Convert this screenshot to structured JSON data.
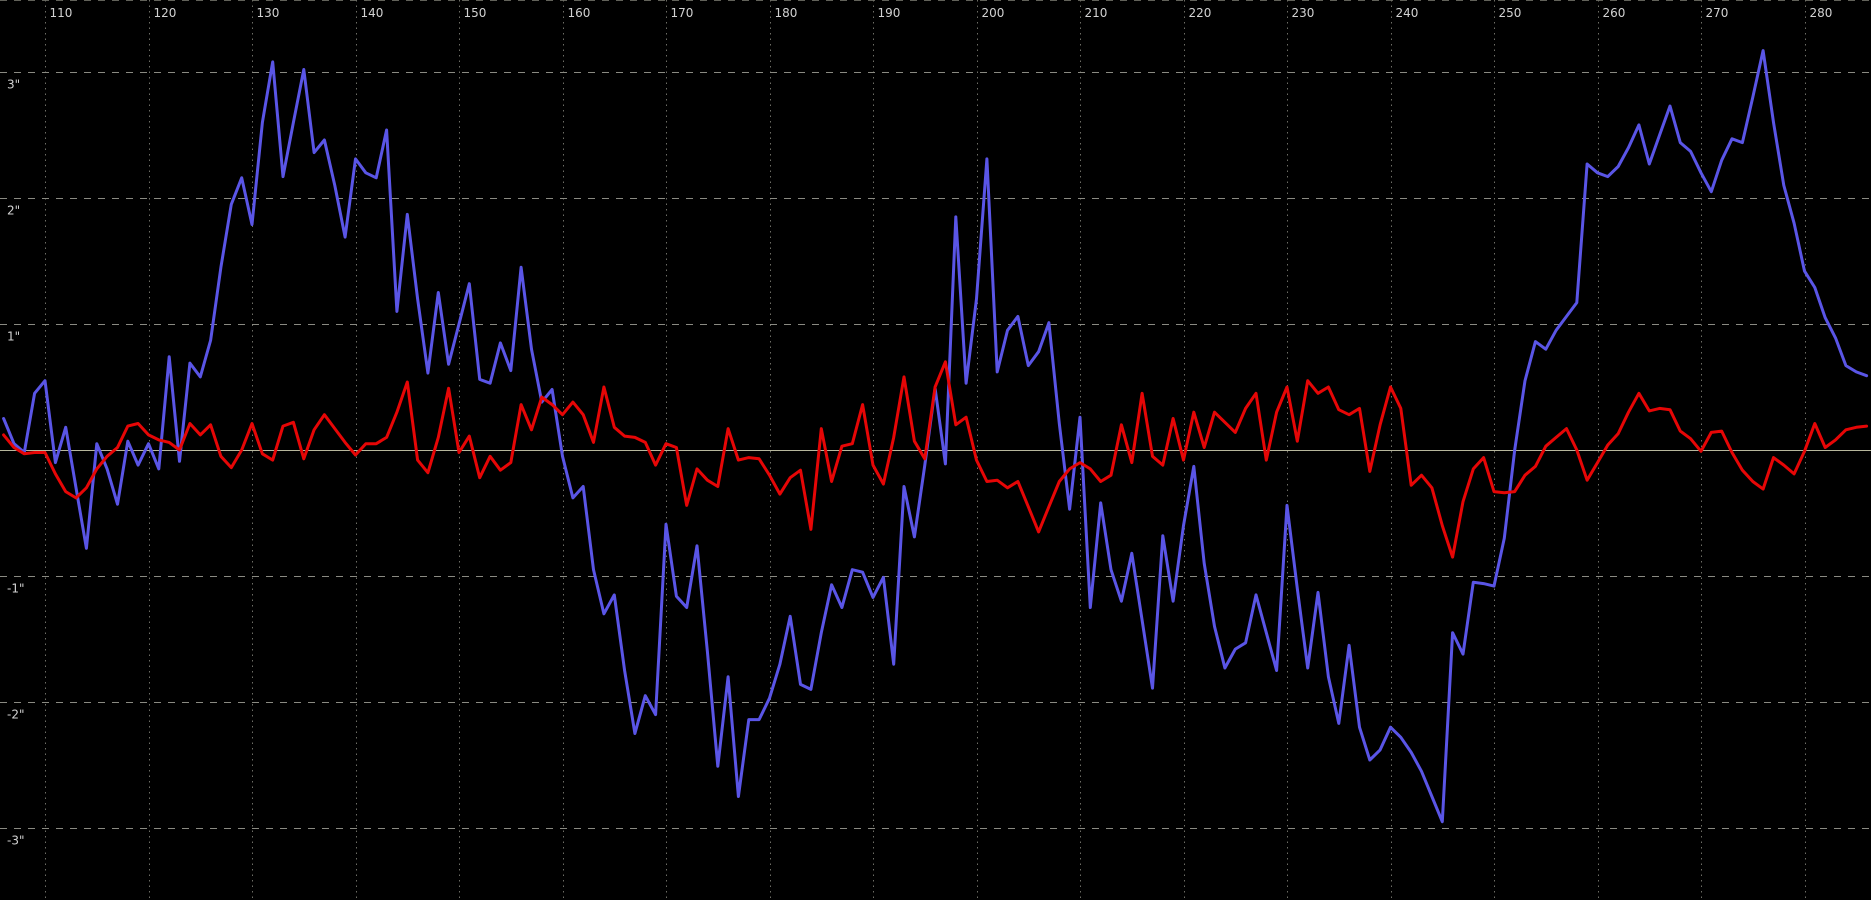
{
  "chart_data": {
    "type": "line",
    "title": "",
    "xlabel": "",
    "ylabel": "",
    "background_color": "#000000",
    "h_grid_color": "#8a8a82",
    "v_grid_color": "#6e6e66",
    "zero_line_color": "#b6b69c",
    "top_border_color": "#62625a",
    "label_color": "#d2d2d2",
    "x_axis": {
      "min": 105.7,
      "max": 286.4,
      "tick_step": 10,
      "ticks": [
        110,
        120,
        130,
        140,
        150,
        160,
        170,
        180,
        190,
        200,
        210,
        220,
        230,
        240,
        250,
        260,
        270,
        280
      ],
      "gridline_style": "dotted",
      "label_position": "top"
    },
    "y_axis": {
      "min": -3.57,
      "max": 3.57,
      "ticks": [
        {
          "value": 3,
          "label": "3\""
        },
        {
          "value": 2,
          "label": "2\""
        },
        {
          "value": 1,
          "label": "1\""
        },
        {
          "value": -1,
          "label": "-1\""
        },
        {
          "value": -2,
          "label": "-2\""
        },
        {
          "value": -3,
          "label": "-3\""
        }
      ],
      "gridline_style": "dashed",
      "zero_line": true,
      "unit": "arcsec"
    },
    "series": [
      {
        "name": "blue",
        "color": "#5a55e6",
        "stroke_width": 3,
        "x_start": 106,
        "x_step": 1,
        "values": [
          0.25,
          0.05,
          -0.02,
          0.45,
          0.55,
          -0.1,
          0.18,
          -0.3,
          -0.78,
          0.05,
          -0.15,
          -0.43,
          0.07,
          -0.12,
          0.05,
          -0.15,
          0.74,
          -0.09,
          0.69,
          0.58,
          0.87,
          1.45,
          1.95,
          2.16,
          1.79,
          2.6,
          3.08,
          2.17,
          2.6,
          3.02,
          2.36,
          2.46,
          2.1,
          1.69,
          2.31,
          2.2,
          2.16,
          2.54,
          1.1,
          1.87,
          1.2,
          0.61,
          1.25,
          0.68,
          1.0,
          1.32,
          0.56,
          0.53,
          0.85,
          0.63,
          1.45,
          0.8,
          0.38,
          0.48,
          -0.05,
          -0.38,
          -0.29,
          -0.95,
          -1.3,
          -1.15,
          -1.75,
          -2.25,
          -1.95,
          -2.1,
          -0.59,
          -1.16,
          -1.25,
          -0.76,
          -1.6,
          -2.51,
          -1.8,
          -2.75,
          -2.14,
          -2.14,
          -1.97,
          -1.7,
          -1.32,
          -1.86,
          -1.9,
          -1.45,
          -1.07,
          -1.25,
          -0.95,
          -0.97,
          -1.17,
          -1.01,
          -1.7,
          -0.29,
          -0.69,
          -0.12,
          0.49,
          -0.11,
          1.85,
          0.53,
          1.2,
          2.31,
          0.62,
          0.95,
          1.06,
          0.67,
          0.78,
          1.01,
          0.21,
          -0.47,
          0.26,
          -1.25,
          -0.42,
          -0.95,
          -1.2,
          -0.82,
          -1.35,
          -1.89,
          -0.68,
          -1.2,
          -0.6,
          -0.13,
          -0.9,
          -1.4,
          -1.73,
          -1.58,
          -1.53,
          -1.15,
          -1.45,
          -1.75,
          -0.44,
          -1.1,
          -1.73,
          -1.13,
          -1.8,
          -2.17,
          -1.55,
          -2.2,
          -2.46,
          -2.38,
          -2.2,
          -2.28,
          -2.4,
          -2.55,
          -2.75,
          -2.95,
          -1.45,
          -1.62,
          -1.05,
          -1.06,
          -1.08,
          -0.7,
          0.0,
          0.55,
          0.86,
          0.8,
          0.95,
          1.06,
          1.17,
          2.27,
          2.2,
          2.17,
          2.25,
          2.4,
          2.58,
          2.27,
          2.5,
          2.73,
          2.44,
          2.37,
          2.2,
          2.05,
          2.3,
          2.47,
          2.44,
          2.8,
          3.17,
          2.6,
          2.1,
          1.8,
          1.42,
          1.29,
          1.05,
          0.89,
          0.67,
          0.62,
          0.59
        ]
      },
      {
        "name": "red",
        "color": "#e60606",
        "stroke_width": 3,
        "x_start": 106,
        "x_step": 1,
        "values": [
          0.12,
          0.02,
          -0.03,
          -0.02,
          -0.02,
          -0.19,
          -0.33,
          -0.38,
          -0.3,
          -0.15,
          -0.05,
          0.02,
          0.19,
          0.21,
          0.12,
          0.08,
          0.06,
          0.0,
          0.21,
          0.12,
          0.2,
          -0.05,
          -0.14,
          0.0,
          0.21,
          -0.03,
          -0.08,
          0.19,
          0.22,
          -0.07,
          0.16,
          0.28,
          0.17,
          0.06,
          -0.04,
          0.05,
          0.05,
          0.1,
          0.3,
          0.54,
          -0.08,
          -0.18,
          0.1,
          0.49,
          -0.02,
          0.11,
          -0.22,
          -0.05,
          -0.16,
          -0.1,
          0.36,
          0.16,
          0.42,
          0.36,
          0.28,
          0.38,
          0.28,
          0.06,
          0.5,
          0.18,
          0.11,
          0.1,
          0.06,
          -0.12,
          0.05,
          0.02,
          -0.44,
          -0.15,
          -0.24,
          -0.29,
          0.17,
          -0.08,
          -0.06,
          -0.07,
          -0.2,
          -0.35,
          -0.22,
          -0.16,
          -0.63,
          0.17,
          -0.25,
          0.03,
          0.05,
          0.36,
          -0.12,
          -0.27,
          0.1,
          0.58,
          0.07,
          -0.07,
          0.5,
          0.7,
          0.2,
          0.26,
          -0.08,
          -0.25,
          -0.24,
          -0.3,
          -0.25,
          -0.45,
          -0.65,
          -0.45,
          -0.25,
          -0.15,
          -0.1,
          -0.15,
          -0.25,
          -0.2,
          0.2,
          -0.1,
          0.45,
          -0.05,
          -0.12,
          0.25,
          -0.08,
          0.3,
          0.02,
          0.3,
          0.22,
          0.14,
          0.33,
          0.45,
          -0.08,
          0.3,
          0.5,
          0.07,
          0.55,
          0.45,
          0.5,
          0.32,
          0.28,
          0.33,
          -0.17,
          0.2,
          0.5,
          0.33,
          -0.28,
          -0.2,
          -0.3,
          -0.6,
          -0.85,
          -0.41,
          -0.15,
          -0.06,
          -0.33,
          -0.34,
          -0.33,
          -0.2,
          -0.13,
          0.03,
          0.1,
          0.17,
          0.0,
          -0.24,
          -0.1,
          0.04,
          0.13,
          0.3,
          0.45,
          0.31,
          0.33,
          0.32,
          0.15,
          0.09,
          -0.01,
          0.14,
          0.15,
          -0.02,
          -0.16,
          -0.25,
          -0.31,
          -0.06,
          -0.12,
          -0.19,
          -0.01,
          0.21,
          0.02,
          0.08,
          0.16,
          0.18,
          0.19
        ]
      }
    ]
  }
}
